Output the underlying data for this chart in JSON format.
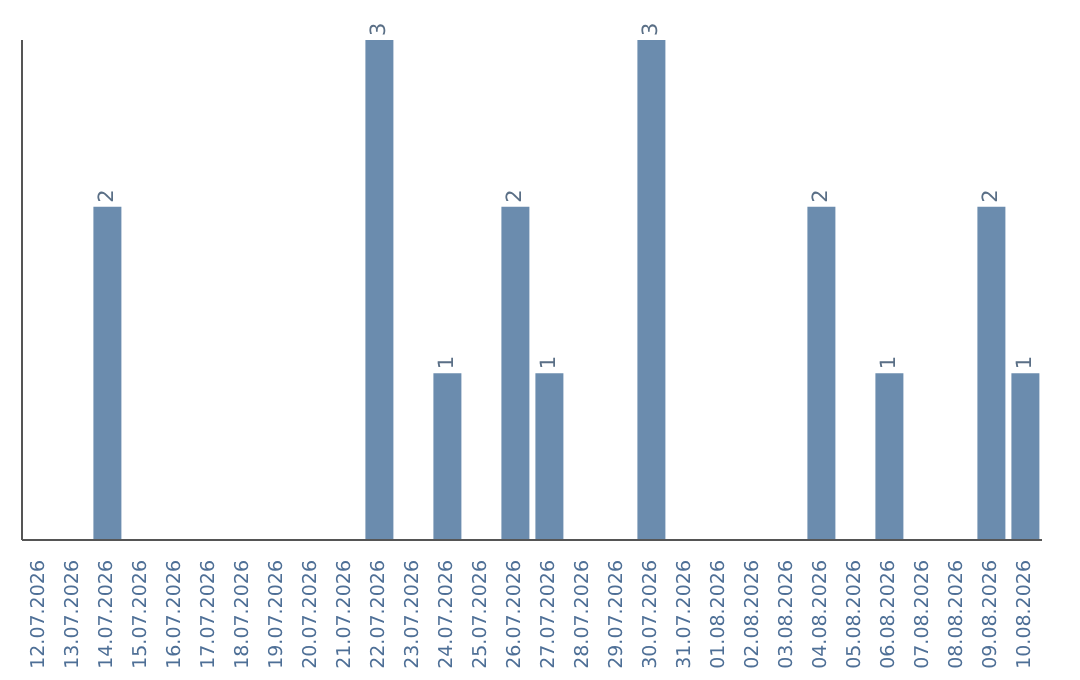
{
  "chart_data": {
    "type": "bar",
    "categories": [
      "12.07.2026",
      "13.07.2026",
      "14.07.2026",
      "15.07.2026",
      "16.07.2026",
      "17.07.2026",
      "18.07.2026",
      "19.07.2026",
      "20.07.2026",
      "21.07.2026",
      "22.07.2026",
      "23.07.2026",
      "24.07.2026",
      "25.07.2026",
      "26.07.2026",
      "27.07.2026",
      "28.07.2026",
      "29.07.2026",
      "30.07.2026",
      "31.07.2026",
      "01.08.2026",
      "02.08.2026",
      "03.08.2026",
      "04.08.2026",
      "05.08.2026",
      "06.08.2026",
      "07.08.2026",
      "08.08.2026",
      "09.08.2026",
      "10.08.2026"
    ],
    "values": [
      0,
      0,
      2,
      0,
      0,
      0,
      0,
      0,
      0,
      0,
      3,
      0,
      1,
      0,
      2,
      1,
      0,
      0,
      3,
      0,
      0,
      0,
      0,
      2,
      0,
      1,
      0,
      0,
      2,
      1
    ],
    "value_labels": [
      null,
      null,
      "2",
      null,
      null,
      null,
      null,
      null,
      null,
      null,
      "3",
      null,
      "1",
      null,
      "2",
      "1",
      null,
      null,
      "3",
      null,
      null,
      null,
      null,
      "2",
      null,
      "1",
      null,
      null,
      "2",
      "1"
    ],
    "color": "#6b8cae",
    "grid": false,
    "legend": false,
    "tick_labels": "x"
  }
}
